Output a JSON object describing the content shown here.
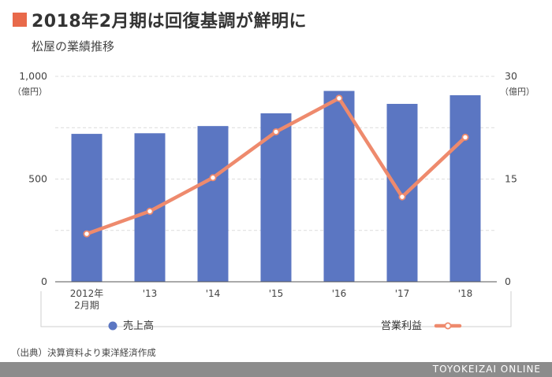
{
  "header": {
    "title": "2018年2月期は回復基調が鮮明に",
    "subtitle": "松屋の業績推移",
    "accent_color": "#e8694a"
  },
  "chart_data": {
    "type": "bar",
    "categories": [
      "2012年\n2月期",
      "'13",
      "'14",
      "'15",
      "'16",
      "'17",
      "'18"
    ],
    "series": [
      {
        "name": "売上高",
        "type": "bar",
        "axis": "left",
        "color": "#5b76c2",
        "values": [
          720,
          723,
          758,
          820,
          929,
          866,
          908
        ]
      },
      {
        "name": "営業利益",
        "type": "line",
        "axis": "right",
        "color": "#ee8a6d",
        "values": [
          7.0,
          10.3,
          15.2,
          21.9,
          26.8,
          12.4,
          21.1
        ]
      }
    ],
    "y_left": {
      "min": 0,
      "max": 1000,
      "ticks": [
        0,
        500,
        1000
      ],
      "tick_labels": [
        "0",
        "500",
        "1,000"
      ],
      "unit": "（億円）"
    },
    "y_right": {
      "min": 0,
      "max": 30,
      "ticks": [
        0,
        15,
        30
      ],
      "tick_labels": [
        "0",
        "15",
        "30"
      ],
      "unit": "（億円）"
    },
    "grid": true,
    "legend_position": "bottom"
  },
  "source": "（出典）決算資料より東洋経済作成",
  "footer": {
    "brand": "TOYOKEIZAI ONLINE"
  }
}
